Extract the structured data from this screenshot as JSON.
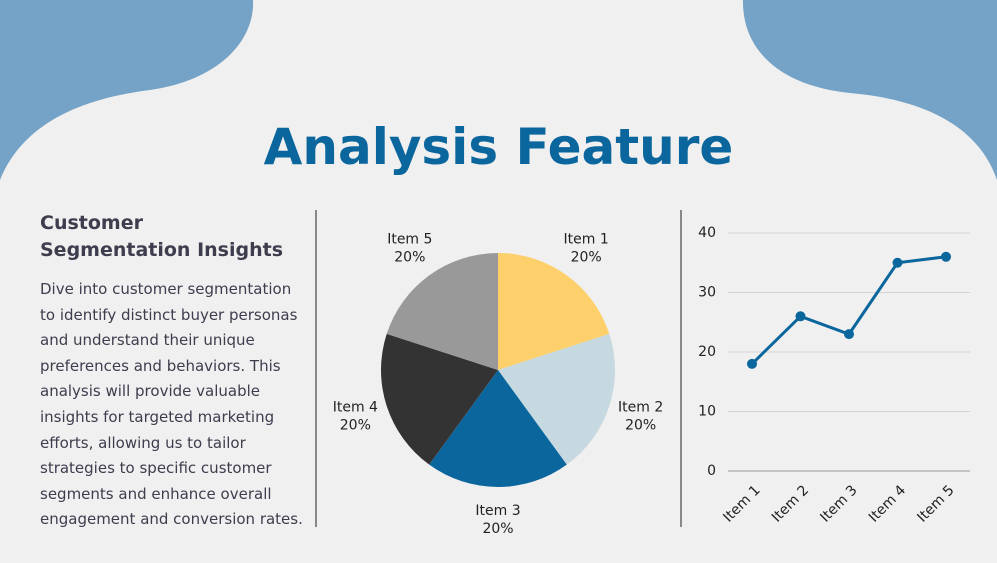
{
  "title": "Analysis Feature",
  "section": {
    "heading": "Customer Segmentation Insights",
    "body": "Dive into customer segmentation to identify distinct buyer personas and understand their unique preferences and behaviors. This analysis will provide valuable insights for targeted marketing efforts, allowing us to tailor strategies to specific customer segments and enhance overall engagement and conversion rates."
  },
  "chart_data": [
    {
      "type": "pie",
      "categories": [
        "Item 1",
        "Item 2",
        "Item 3",
        "Item 4",
        "Item 5"
      ],
      "values": [
        20,
        20,
        20,
        20,
        20
      ],
      "value_labels": [
        "20%",
        "20%",
        "20%",
        "20%",
        "20%"
      ],
      "colors": [
        "#fdd06b",
        "#c6d8e0",
        "#0b669d",
        "#333333",
        "#999999"
      ]
    },
    {
      "type": "line",
      "categories": [
        "Item 1",
        "Item 2",
        "Item 3",
        "Item 4",
        "Item 5"
      ],
      "series": [
        {
          "color": "#0b669d",
          "values": [
            18,
            26,
            23,
            35,
            36
          ]
        }
      ],
      "ylim": [
        0,
        40
      ],
      "yticks": [
        0,
        10,
        20,
        30,
        40
      ],
      "grid": true
    }
  ]
}
